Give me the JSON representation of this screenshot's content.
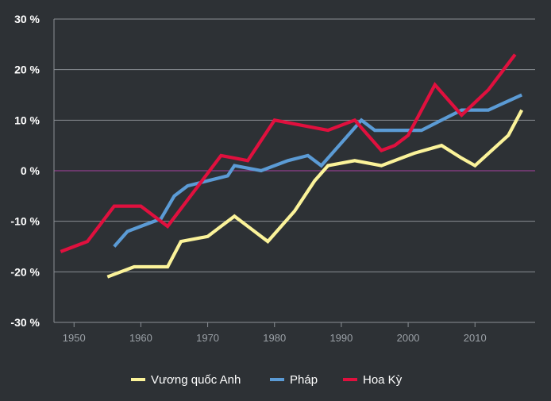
{
  "chart_data": {
    "type": "line",
    "title": "",
    "xlabel": "",
    "ylabel": "",
    "xlim": [
      1947,
      2019
    ],
    "ylim": [
      -30,
      30
    ],
    "x_ticks": [
      1950,
      1960,
      1970,
      1980,
      1990,
      2000,
      2010
    ],
    "x_tick_labels": [
      "1950",
      "1960",
      "1970",
      "1980",
      "1990",
      "2000",
      "2010"
    ],
    "y_ticks": [
      30,
      20,
      10,
      0,
      -10,
      -20,
      -30
    ],
    "y_tick_labels": [
      "30 %",
      "20 %",
      "10 %",
      "0 %",
      "-10 %",
      "-20 %",
      "-30 %"
    ],
    "grid": true,
    "zero_line_color": "#8e3f8c",
    "legend_position": "bottom-center",
    "series": [
      {
        "name": "Vương quốc Anh",
        "color": "#fbf39a",
        "points": [
          [
            1955,
            -21
          ],
          [
            1957,
            -20
          ],
          [
            1959,
            -19
          ],
          [
            1962,
            -19
          ],
          [
            1964,
            -19
          ],
          [
            1966,
            -14
          ],
          [
            1968,
            -13.5
          ],
          [
            1970,
            -13
          ],
          [
            1972,
            -11
          ],
          [
            1974,
            -9
          ],
          [
            1976,
            -11
          ],
          [
            1979,
            -14
          ],
          [
            1983,
            -8
          ],
          [
            1986,
            -2
          ],
          [
            1988,
            1
          ],
          [
            1992,
            2
          ],
          [
            1996,
            1
          ],
          [
            2001,
            3.5
          ],
          [
            2005,
            5
          ],
          [
            2008,
            2.5
          ],
          [
            2010,
            1
          ],
          [
            2015,
            7
          ],
          [
            2017,
            12
          ]
        ]
      },
      {
        "name": "Pháp",
        "color": "#5b9bd5",
        "points": [
          [
            1956,
            -15
          ],
          [
            1958,
            -12
          ],
          [
            1960,
            -11
          ],
          [
            1963,
            -9.5
          ],
          [
            1965,
            -5
          ],
          [
            1967,
            -3
          ],
          [
            1970,
            -2
          ],
          [
            1973,
            -1
          ],
          [
            1974,
            1
          ],
          [
            1978,
            0
          ],
          [
            1982,
            2
          ],
          [
            1985,
            3
          ],
          [
            1987,
            1
          ],
          [
            1993,
            10
          ],
          [
            1995,
            8
          ],
          [
            2000,
            8
          ],
          [
            2002,
            8
          ],
          [
            2005,
            10
          ],
          [
            2008,
            12
          ],
          [
            2012,
            12
          ],
          [
            2017,
            15
          ]
        ]
      },
      {
        "name": "Hoa Kỳ",
        "color": "#e0103e",
        "points": [
          [
            1948,
            -16
          ],
          [
            1952,
            -14
          ],
          [
            1956,
            -7
          ],
          [
            1960,
            -7
          ],
          [
            1964,
            -11
          ],
          [
            1968,
            -4
          ],
          [
            1972,
            3
          ],
          [
            1974,
            2.5
          ],
          [
            1976,
            2
          ],
          [
            1980,
            10
          ],
          [
            1984,
            9
          ],
          [
            1988,
            8
          ],
          [
            1992,
            10
          ],
          [
            1996,
            4
          ],
          [
            1998,
            5
          ],
          [
            2000,
            7
          ],
          [
            2004,
            17
          ],
          [
            2008,
            11
          ],
          [
            2012,
            16
          ],
          [
            2016,
            23
          ]
        ]
      }
    ]
  }
}
